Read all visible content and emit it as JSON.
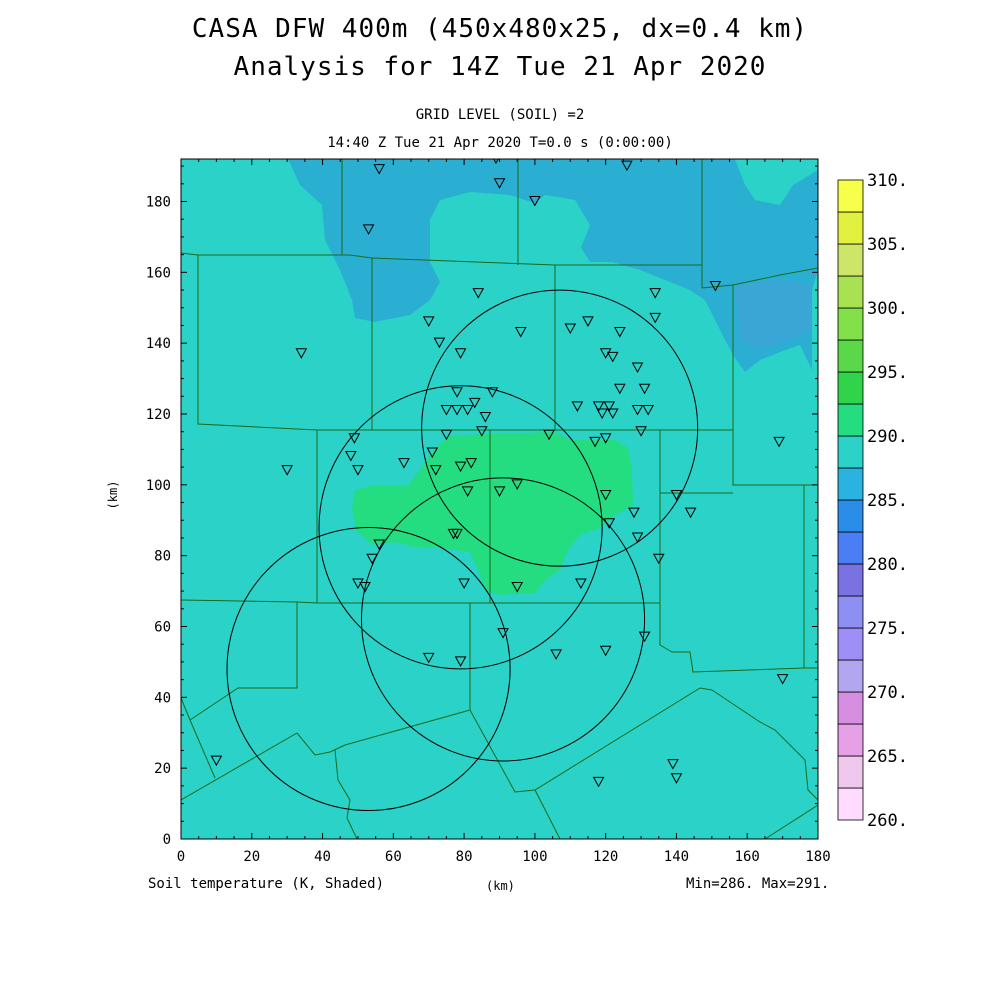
{
  "title_line1": "CASA DFW 400m (450x480x25, dx=0.4 km)",
  "title_line2": "Analysis for 14Z Tue 21 Apr 2020",
  "subtitle_line1": "GRID LEVEL (SOIL) =2",
  "subtitle_line2": "14:40 Z Tue 21 Apr 2020   T=0.0 s (0:00:00)",
  "footer_left": "Soil temperature (K, Shaded)",
  "footer_mid": "(km)",
  "footer_right": "Min=286. Max=291.",
  "y_axis_label": "(km)",
  "colors": {
    "field_base": "#2ad2c8",
    "field_cool": "#2aafd3",
    "field_cooler": "#3aa6d6",
    "field_warm": "#24dd80",
    "county_lines": "#1a6a1a",
    "radar_rings": "#000000"
  },
  "chart_data": {
    "type": "heatmap",
    "xlim": [
      0,
      180
    ],
    "ylim": [
      0,
      192
    ],
    "x_ticks": [
      0,
      20,
      40,
      60,
      80,
      100,
      120,
      140,
      160,
      180
    ],
    "y_ticks": [
      0,
      20,
      40,
      60,
      80,
      100,
      120,
      140,
      160,
      180
    ],
    "variable": "Soil temperature (K, Shaded)",
    "min": 286,
    "max": 291,
    "colorbar": {
      "levels": [
        "260.",
        "265.",
        "270.",
        "275.",
        "280.",
        "285.",
        "290.",
        "295.",
        "300.",
        "305.",
        "310."
      ],
      "colors": [
        "#ffdcff",
        "#f0c8ee",
        "#e6a0e6",
        "#d68ee0",
        "#b3a6f0",
        "#9d8ff6",
        "#8e8ff2",
        "#7a72e0",
        "#4a7ef4",
        "#2a8ee8",
        "#2ab2e0",
        "#2ad2c8",
        "#24dd80",
        "#30d44a",
        "#5ad84a",
        "#82e04a",
        "#a8e252",
        "#cde66a",
        "#e2f040",
        "#f7ff4a"
      ]
    },
    "regions": [
      {
        "level": "285-290 (cool)",
        "description_value": 285
      },
      {
        "level": "290-295 (warm)",
        "description_value": 290
      }
    ],
    "radar_rings": [
      {
        "center_km": [
          107,
          116
        ],
        "radius_km": 39
      },
      {
        "center_km": [
          79,
          88
        ],
        "radius_km": 40
      },
      {
        "center_km": [
          91,
          62
        ],
        "radius_km": 40
      },
      {
        "center_km": [
          53,
          48
        ],
        "radius_km": 40
      }
    ],
    "stations_km": [
      [
        56,
        189
      ],
      [
        89,
        192
      ],
      [
        126,
        190
      ],
      [
        90,
        185
      ],
      [
        100,
        180
      ],
      [
        53,
        172
      ],
      [
        84,
        154
      ],
      [
        151,
        156
      ],
      [
        134,
        154
      ],
      [
        134,
        147
      ],
      [
        70,
        146
      ],
      [
        110,
        144
      ],
      [
        115,
        146
      ],
      [
        96,
        143
      ],
      [
        124,
        143
      ],
      [
        73,
        140
      ],
      [
        79,
        137
      ],
      [
        120,
        137
      ],
      [
        122,
        136
      ],
      [
        34,
        137
      ],
      [
        129,
        133
      ],
      [
        124,
        127
      ],
      [
        131,
        127
      ],
      [
        78,
        126
      ],
      [
        88,
        126
      ],
      [
        83,
        123
      ],
      [
        78,
        121
      ],
      [
        81,
        121
      ],
      [
        75,
        121
      ],
      [
        86,
        119
      ],
      [
        112,
        122
      ],
      [
        118,
        122
      ],
      [
        121,
        122
      ],
      [
        119,
        120
      ],
      [
        122,
        120
      ],
      [
        129,
        121
      ],
      [
        132,
        121
      ],
      [
        75,
        114
      ],
      [
        85,
        115
      ],
      [
        104,
        114
      ],
      [
        130,
        115
      ],
      [
        49,
        113
      ],
      [
        117,
        112
      ],
      [
        120,
        113
      ],
      [
        71,
        109
      ],
      [
        48,
        108
      ],
      [
        63,
        106
      ],
      [
        79,
        105
      ],
      [
        82,
        106
      ],
      [
        72,
        104
      ],
      [
        30,
        104
      ],
      [
        50,
        104
      ],
      [
        169,
        112
      ],
      [
        95,
        100
      ],
      [
        90,
        98
      ],
      [
        81,
        98
      ],
      [
        120,
        97
      ],
      [
        140,
        97
      ],
      [
        144,
        92
      ],
      [
        128,
        92
      ],
      [
        121,
        89
      ],
      [
        129,
        85
      ],
      [
        78,
        86
      ],
      [
        77,
        86
      ],
      [
        56,
        83
      ],
      [
        54,
        79
      ],
      [
        135,
        79
      ],
      [
        50,
        72
      ],
      [
        52,
        71
      ],
      [
        80,
        72
      ],
      [
        95,
        71
      ],
      [
        113,
        72
      ],
      [
        91,
        58
      ],
      [
        131,
        57
      ],
      [
        120,
        53
      ],
      [
        106,
        52
      ],
      [
        70,
        51
      ],
      [
        79,
        50
      ],
      [
        170,
        45
      ],
      [
        10,
        22
      ],
      [
        139,
        21
      ],
      [
        140,
        17
      ],
      [
        118,
        16
      ]
    ]
  }
}
